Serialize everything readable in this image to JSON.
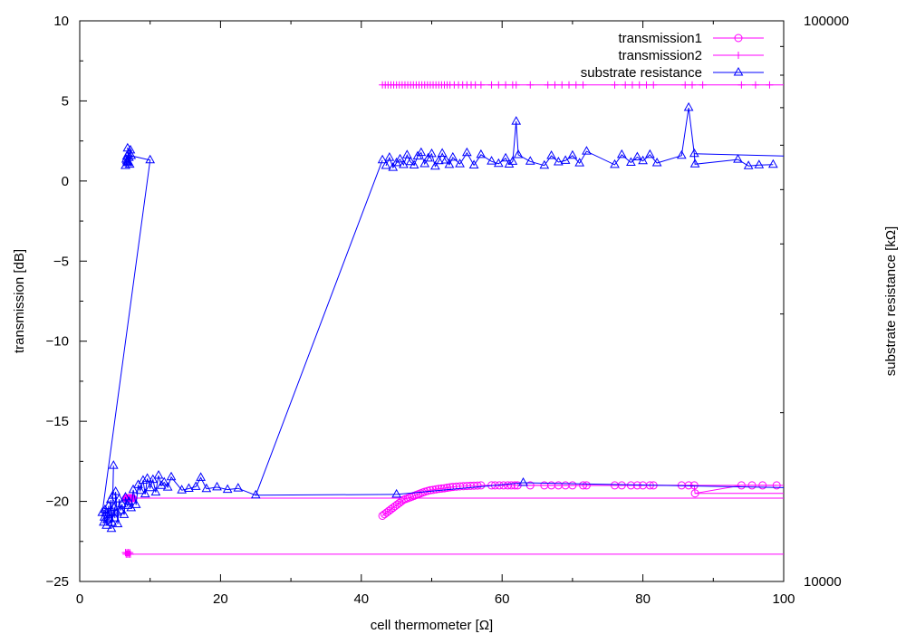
{
  "chart_data": {
    "type": "scatter",
    "title": "",
    "xlabel": "cell thermometer [Ω]",
    "ylabel": "transmission [dB]",
    "y2label": "substrate resistance [kΩ]",
    "xlim": [
      0,
      100
    ],
    "ylim": [
      -25,
      10
    ],
    "y2lim": [
      10000,
      100000
    ],
    "y2scale": "log",
    "x_ticks": [
      "0",
      "20",
      "40",
      "60",
      "80",
      "100"
    ],
    "y_ticks": [
      "10",
      "5",
      "0",
      "−5",
      "−10",
      "−15",
      "−20",
      "−25"
    ],
    "y2_ticks": [
      "100000",
      "10000"
    ],
    "grid": false,
    "legend_position": "top-right",
    "colors": {
      "transmission1": "#ff00ff",
      "transmission2": "#ff00ff",
      "substrate": "#0000ff"
    },
    "series": [
      {
        "name": "transmission1",
        "axis": "y",
        "marker": "circle",
        "points": [
          [
            6.6,
            -19.8
          ],
          [
            6.7,
            -19.8
          ],
          [
            6.8,
            -19.8
          ],
          [
            6.9,
            -19.8
          ],
          [
            7.0,
            -19.8
          ],
          [
            7.1,
            -19.8
          ],
          [
            7.2,
            -19.8
          ],
          [
            7.3,
            -19.8
          ],
          [
            7.4,
            -19.8
          ],
          [
            7.5,
            -19.8
          ],
          [
            43.0,
            -20.9
          ],
          [
            43.3,
            -20.8
          ],
          [
            43.6,
            -20.7
          ],
          [
            43.9,
            -20.6
          ],
          [
            44.2,
            -20.5
          ],
          [
            44.5,
            -20.4
          ],
          [
            44.8,
            -20.3
          ],
          [
            45.1,
            -20.2
          ],
          [
            45.4,
            -20.1
          ],
          [
            45.7,
            -20.0
          ],
          [
            46.0,
            -19.9
          ],
          [
            46.3,
            -19.85
          ],
          [
            46.6,
            -19.8
          ],
          [
            46.9,
            -19.75
          ],
          [
            47.2,
            -19.7
          ],
          [
            47.5,
            -19.65
          ],
          [
            47.8,
            -19.6
          ],
          [
            48.1,
            -19.55
          ],
          [
            48.4,
            -19.5
          ],
          [
            48.7,
            -19.45
          ],
          [
            49.0,
            -19.4
          ],
          [
            49.4,
            -19.35
          ],
          [
            49.8,
            -19.3
          ],
          [
            50.2,
            -19.28
          ],
          [
            50.6,
            -19.25
          ],
          [
            51.0,
            -19.22
          ],
          [
            51.4,
            -19.2
          ],
          [
            51.8,
            -19.18
          ],
          [
            52.2,
            -19.15
          ],
          [
            52.6,
            -19.12
          ],
          [
            53.0,
            -19.1
          ],
          [
            53.5,
            -19.08
          ],
          [
            54.0,
            -19.06
          ],
          [
            54.5,
            -19.05
          ],
          [
            55.0,
            -19.04
          ],
          [
            55.5,
            -19.03
          ],
          [
            56.0,
            -19.02
          ],
          [
            56.5,
            -19.01
          ],
          [
            57.0,
            -19.0
          ],
          [
            58.5,
            -19.0
          ],
          [
            59.0,
            -19.0
          ],
          [
            59.6,
            -19.0
          ],
          [
            60.2,
            -19.0
          ],
          [
            60.8,
            -19.0
          ],
          [
            61.3,
            -19.0
          ],
          [
            61.8,
            -19.0
          ],
          [
            62.2,
            -19.0
          ],
          [
            64.0,
            -19.0
          ],
          [
            66.0,
            -19.0
          ],
          [
            67.0,
            -19.0
          ],
          [
            68.0,
            -19.0
          ],
          [
            69.0,
            -19.0
          ],
          [
            70.0,
            -19.0
          ],
          [
            71.5,
            -19.0
          ],
          [
            72.0,
            -19.0
          ],
          [
            76.0,
            -19.0
          ],
          [
            77.0,
            -19.0
          ],
          [
            78.3,
            -19.0
          ],
          [
            79.2,
            -19.0
          ],
          [
            80.0,
            -19.0
          ],
          [
            81.0,
            -19.0
          ],
          [
            81.5,
            -19.0
          ],
          [
            85.5,
            -19.0
          ],
          [
            86.5,
            -19.0
          ],
          [
            87.3,
            -19.0
          ],
          [
            87.4,
            -19.5
          ],
          [
            94.0,
            -19.0
          ],
          [
            95.5,
            -19.0
          ],
          [
            97.0,
            -19.0
          ],
          [
            99.0,
            -19.0
          ]
        ],
        "lines": [
          [
            [
              7.5,
              -19.8
            ],
            [
              100,
              -19.8
            ]
          ],
          [
            [
              87.4,
              -19.5
            ],
            [
              100,
              -19.5
            ]
          ],
          [
            [
              62.2,
              -19.0
            ],
            [
              100,
              -19.0
            ]
          ]
        ]
      },
      {
        "name": "transmission2",
        "axis": "y",
        "marker": "plus",
        "points": [
          [
            6.5,
            -23.2
          ],
          [
            6.6,
            -23.3
          ],
          [
            6.7,
            -23.2
          ],
          [
            6.8,
            -23.3
          ],
          [
            6.9,
            -23.2
          ],
          [
            7.0,
            -23.3
          ],
          [
            7.1,
            -23.2
          ],
          [
            7.2,
            -23.3
          ],
          [
            43.0,
            6.0
          ],
          [
            43.4,
            6.0
          ],
          [
            43.8,
            6.0
          ],
          [
            44.2,
            6.0
          ],
          [
            44.6,
            6.0
          ],
          [
            45.0,
            6.0
          ],
          [
            45.4,
            6.0
          ],
          [
            45.8,
            6.0
          ],
          [
            46.2,
            6.0
          ],
          [
            46.6,
            6.0
          ],
          [
            47.0,
            6.0
          ],
          [
            47.4,
            6.0
          ],
          [
            47.8,
            6.0
          ],
          [
            48.2,
            6.0
          ],
          [
            48.6,
            6.0
          ],
          [
            49.0,
            6.0
          ],
          [
            49.4,
            6.0
          ],
          [
            49.8,
            6.0
          ],
          [
            50.2,
            6.0
          ],
          [
            50.6,
            6.0
          ],
          [
            51.0,
            6.0
          ],
          [
            51.4,
            6.0
          ],
          [
            51.8,
            6.0
          ],
          [
            52.2,
            6.0
          ],
          [
            52.6,
            6.0
          ],
          [
            53.2,
            6.0
          ],
          [
            53.8,
            6.0
          ],
          [
            54.4,
            6.0
          ],
          [
            55.0,
            6.0
          ],
          [
            55.6,
            6.0
          ],
          [
            56.2,
            6.0
          ],
          [
            57.0,
            6.0
          ],
          [
            58.5,
            6.0
          ],
          [
            59.5,
            6.0
          ],
          [
            60.5,
            6.0
          ],
          [
            61.5,
            6.0
          ],
          [
            62.0,
            6.0
          ],
          [
            64.0,
            6.0
          ],
          [
            66.5,
            6.0
          ],
          [
            67.5,
            6.0
          ],
          [
            68.5,
            6.0
          ],
          [
            69.5,
            6.0
          ],
          [
            70.5,
            6.0
          ],
          [
            71.5,
            6.0
          ],
          [
            76.0,
            6.0
          ],
          [
            77.5,
            6.0
          ],
          [
            78.5,
            6.0
          ],
          [
            79.5,
            6.0
          ],
          [
            80.5,
            6.0
          ],
          [
            81.5,
            6.0
          ],
          [
            86.0,
            6.0
          ],
          [
            87.0,
            6.0
          ],
          [
            88.5,
            6.0
          ],
          [
            94.0,
            6.0
          ],
          [
            96.0,
            6.0
          ],
          [
            98.0,
            6.0
          ]
        ],
        "lines": [
          [
            [
              7.2,
              -23.3
            ],
            [
              100,
              -23.3
            ]
          ],
          [
            [
              43.0,
              6.0
            ],
            [
              100,
              6.0
            ]
          ]
        ]
      },
      {
        "name": "substrate resistance",
        "axis": "y2",
        "marker": "triangle",
        "points": [
          [
            6.5,
            55140
          ],
          [
            6.7,
            56220
          ],
          [
            6.8,
            55780
          ],
          [
            7.0,
            57010
          ],
          [
            6.6,
            56610
          ],
          [
            6.9,
            57880
          ],
          [
            6.7,
            57300
          ],
          [
            7.1,
            55430
          ],
          [
            6.8,
            59230
          ],
          [
            7.2,
            58770
          ],
          [
            6.9,
            56010
          ],
          [
            7.3,
            57440
          ],
          [
            10.0,
            56440
          ],
          [
            3.2,
            13260
          ],
          [
            3.5,
            13010
          ],
          [
            3.7,
            13240
          ],
          [
            3.4,
            12740
          ],
          [
            3.9,
            12870
          ],
          [
            3.6,
            13420
          ],
          [
            4.0,
            13130
          ],
          [
            3.8,
            12580
          ],
          [
            4.1,
            13640
          ],
          [
            4.2,
            12940
          ],
          [
            4.4,
            13980
          ],
          [
            4.5,
            12420
          ],
          [
            4.7,
            14230
          ],
          [
            4.8,
            16090
          ],
          [
            4.6,
            12730
          ],
          [
            4.9,
            13550
          ],
          [
            5.0,
            12970
          ],
          [
            5.1,
            14450
          ],
          [
            5.3,
            13280
          ],
          [
            5.4,
            12660
          ],
          [
            5.6,
            14020
          ],
          [
            5.8,
            13380
          ],
          [
            6.0,
            13740
          ],
          [
            6.3,
            13150
          ],
          [
            6.5,
            14130
          ],
          [
            6.8,
            13650
          ],
          [
            7.0,
            13870
          ],
          [
            7.3,
            13520
          ],
          [
            7.6,
            14570
          ],
          [
            8.0,
            13700
          ],
          [
            8.3,
            14870
          ],
          [
            8.6,
            14520
          ],
          [
            9.0,
            15140
          ],
          [
            9.3,
            14310
          ],
          [
            9.6,
            15260
          ],
          [
            10.0,
            14680
          ],
          [
            10.4,
            15190
          ],
          [
            10.8,
            14420
          ],
          [
            11.2,
            15450
          ],
          [
            11.6,
            14820
          ],
          [
            12.0,
            15020
          ],
          [
            12.5,
            14720
          ],
          [
            13.0,
            15350
          ],
          [
            14.5,
            14550
          ],
          [
            15.5,
            14640
          ],
          [
            16.5,
            14760
          ],
          [
            17.2,
            15320
          ],
          [
            18.0,
            14630
          ],
          [
            19.5,
            14730
          ],
          [
            21.0,
            14580
          ],
          [
            22.5,
            14660
          ],
          [
            25.0,
            14250
          ],
          [
            43.0,
            56440
          ],
          [
            43.5,
            55140
          ],
          [
            44.0,
            57010
          ],
          [
            44.5,
            54720
          ],
          [
            45.0,
            55800
          ],
          [
            45.5,
            56620
          ],
          [
            46.0,
            55360
          ],
          [
            46.5,
            57600
          ],
          [
            47.0,
            56020
          ],
          [
            47.5,
            55240
          ],
          [
            48.0,
            57310
          ],
          [
            48.5,
            58180
          ],
          [
            49.0,
            55550
          ],
          [
            49.5,
            56850
          ],
          [
            50.0,
            57900
          ],
          [
            50.5,
            55000
          ],
          [
            51.0,
            56230
          ],
          [
            51.5,
            58000
          ],
          [
            52.0,
            56400
          ],
          [
            52.5,
            55380
          ],
          [
            53.0,
            57050
          ],
          [
            54.0,
            55530
          ],
          [
            55.0,
            58140
          ],
          [
            56.0,
            55260
          ],
          [
            57.0,
            57700
          ],
          [
            58.5,
            56150
          ],
          [
            59.5,
            55610
          ],
          [
            60.5,
            56870
          ],
          [
            61.0,
            55460
          ],
          [
            61.5,
            56100
          ],
          [
            62.0,
            66150
          ],
          [
            62.3,
            57670
          ],
          [
            64.0,
            56120
          ],
          [
            66.0,
            55200
          ],
          [
            67.0,
            57440
          ],
          [
            68.0,
            55980
          ],
          [
            69.0,
            56320
          ],
          [
            70.0,
            57500
          ],
          [
            71.0,
            55730
          ],
          [
            72.0,
            58500
          ],
          [
            76.0,
            55370
          ],
          [
            77.0,
            57690
          ],
          [
            78.3,
            55860
          ],
          [
            79.2,
            57130
          ],
          [
            80.0,
            56240
          ],
          [
            81.0,
            57700
          ],
          [
            82.0,
            55770
          ],
          [
            85.5,
            57500
          ],
          [
            86.5,
            70000
          ],
          [
            87.3,
            57930
          ],
          [
            87.4,
            55500
          ],
          [
            93.5,
            56580
          ],
          [
            95.0,
            55100
          ],
          [
            96.5,
            55300
          ],
          [
            98.5,
            55400
          ],
          [
            45.0,
            14300
          ],
          [
            63.0,
            15000
          ]
        ],
        "lines": [
          [
            [
              25.0,
              14250
            ],
            [
              45.0,
              14300
            ]
          ],
          [
            [
              45.0,
              14300
            ],
            [
              63.0,
              15000
            ]
          ],
          [
            [
              63.0,
              15000
            ],
            [
              100,
              14700
            ]
          ],
          [
            [
              87.3,
              57930
            ],
            [
              100,
              57400
            ]
          ]
        ]
      }
    ]
  }
}
